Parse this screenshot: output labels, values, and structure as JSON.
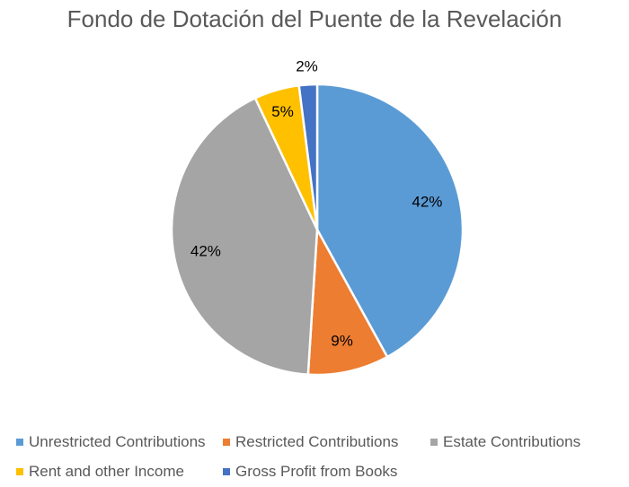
{
  "chart_data": {
    "type": "pie",
    "title": "Fondo de Dotación del Puente de la Revelación",
    "slices": [
      {
        "name": "Unrestricted Contributions",
        "value": 42,
        "label": "42%",
        "color": "#5B9BD5"
      },
      {
        "name": "Restricted Contributions",
        "value": 9,
        "label": "9%",
        "color": "#ED7D31"
      },
      {
        "name": "Estate Contributions",
        "value": 42,
        "label": "42%",
        "color": "#A5A5A5"
      },
      {
        "name": "Rent and other Income",
        "value": 5,
        "label": "5%",
        "color": "#FFC000"
      },
      {
        "name": "Gross Profit from Books",
        "value": 2,
        "label": "2%",
        "color": "#4472C4"
      }
    ],
    "legend_position": "bottom"
  }
}
